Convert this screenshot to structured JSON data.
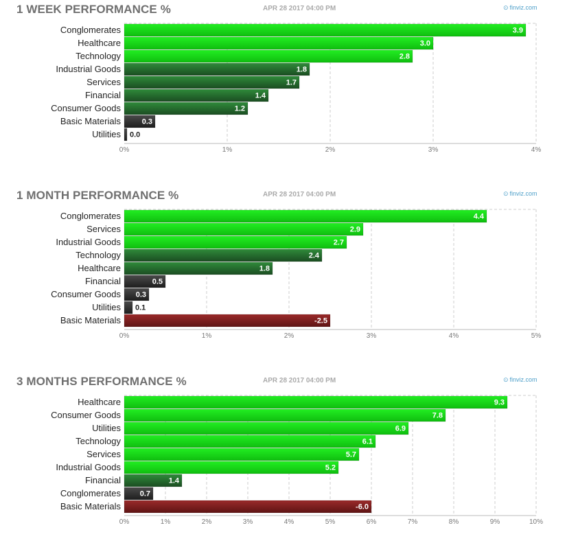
{
  "panels": [
    {
      "title": "1 WEEK PERFORMANCE %",
      "date": "APR 28 2017 04:00 PM",
      "brand": "finviz.com"
    },
    {
      "title": "1 MONTH PERFORMANCE %",
      "date": "APR 28 2017 04:00 PM",
      "brand": "finviz.com"
    },
    {
      "title": "3 MONTHS PERFORMANCE %",
      "date": "APR 28 2017 04:00 PM",
      "brand": "finviz.com"
    }
  ],
  "brand_icon": "finviz-logo-icon",
  "colors": {
    "strong_positive": "#11dd11",
    "weak_positive": "#1f5a28",
    "neutral": "#2b2b2b",
    "negative": "#7a1c1c",
    "grid": "#cccccc"
  },
  "chart_data": [
    {
      "type": "bar",
      "orientation": "horizontal",
      "title": "1 WEEK PERFORMANCE %",
      "categories": [
        "Conglomerates",
        "Healthcare",
        "Technology",
        "Industrial Goods",
        "Services",
        "Financial",
        "Consumer Goods",
        "Basic Materials",
        "Utilities"
      ],
      "values": [
        3.9,
        3.0,
        2.8,
        1.8,
        1.7,
        1.4,
        1.2,
        0.3,
        0.0
      ],
      "value_labels": [
        "3.9",
        "3.0",
        "2.8",
        "1.8",
        "1.7",
        "1.4",
        "1.2",
        "0.3",
        "0.0"
      ],
      "xlim": [
        0,
        4
      ],
      "ticks": [
        "0%",
        "1%",
        "2%",
        "3%",
        "4%"
      ],
      "grid": true
    },
    {
      "type": "bar",
      "orientation": "horizontal",
      "title": "1 MONTH PERFORMANCE %",
      "categories": [
        "Conglomerates",
        "Services",
        "Industrial Goods",
        "Technology",
        "Healthcare",
        "Financial",
        "Consumer Goods",
        "Utilities",
        "Basic Materials"
      ],
      "values": [
        4.4,
        2.9,
        2.7,
        2.4,
        1.8,
        0.5,
        0.3,
        0.1,
        -2.5
      ],
      "value_labels": [
        "4.4",
        "2.9",
        "2.7",
        "2.4",
        "1.8",
        "0.5",
        "0.3",
        "0.1",
        "-2.5"
      ],
      "xlim": [
        0,
        5
      ],
      "ticks": [
        "0%",
        "1%",
        "2%",
        "3%",
        "4%",
        "5%"
      ],
      "grid": true
    },
    {
      "type": "bar",
      "orientation": "horizontal",
      "title": "3 MONTHS PERFORMANCE %",
      "categories": [
        "Healthcare",
        "Consumer Goods",
        "Utilities",
        "Technology",
        "Services",
        "Industrial Goods",
        "Financial",
        "Conglomerates",
        "Basic Materials"
      ],
      "values": [
        9.3,
        7.8,
        6.9,
        6.1,
        5.7,
        5.2,
        1.4,
        0.7,
        -6.0
      ],
      "value_labels": [
        "9.3",
        "7.8",
        "6.9",
        "6.1",
        "5.7",
        "5.2",
        "1.4",
        "0.7",
        "-6.0"
      ],
      "xlim": [
        0,
        10
      ],
      "ticks": [
        "0%",
        "1%",
        "2%",
        "3%",
        "4%",
        "5%",
        "6%",
        "7%",
        "8%",
        "9%",
        "10%"
      ],
      "grid": true
    }
  ]
}
